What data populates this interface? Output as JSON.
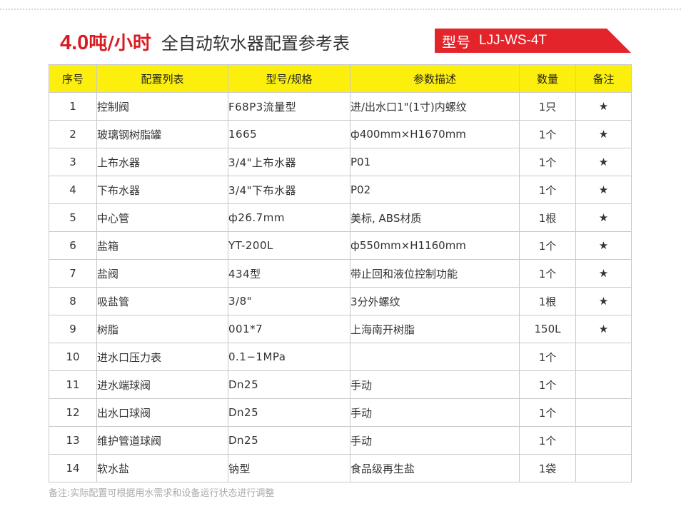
{
  "header": {
    "title_number": "4.0",
    "title_unit": "吨/小时",
    "title_rest": "全自动软水器配置参考表",
    "model_label": "型号",
    "model_value": "LJJ-WS-4T"
  },
  "table": {
    "columns": [
      "序号",
      "配置列表",
      "型号/规格",
      "参数描述",
      "数量",
      "备注"
    ],
    "rows": [
      {
        "seq": "1",
        "name": "控制阀",
        "model": "F68P3流量型",
        "desc": "进/出水口1\"(1寸)内螺纹",
        "qty": "1只",
        "note": "★"
      },
      {
        "seq": "2",
        "name": "玻璃钢树脂罐",
        "model": "1665",
        "desc": "ф400mm×H1670mm",
        "qty": "1个",
        "note": "★"
      },
      {
        "seq": "3",
        "name": "上布水器",
        "model": "3/4\"上布水器",
        "desc": "P01",
        "qty": "1个",
        "note": "★"
      },
      {
        "seq": "4",
        "name": "下布水器",
        "model": "3/4\"下布水器",
        "desc": "P02",
        "qty": "1个",
        "note": "★"
      },
      {
        "seq": "5",
        "name": "中心管",
        "model": "ф26.7mm",
        "desc": "美标, ABS材质",
        "qty": "1根",
        "note": "★"
      },
      {
        "seq": "6",
        "name": "盐箱",
        "model": "YT-200L",
        "desc": "ф550mm×H1160mm",
        "qty": "1个",
        "note": "★"
      },
      {
        "seq": "7",
        "name": "盐阀",
        "model": "434型",
        "desc": "带止回和液位控制功能",
        "qty": "1个",
        "note": "★"
      },
      {
        "seq": "8",
        "name": "吸盐管",
        "model": "3/8\"",
        "desc": "3分外螺纹",
        "qty": "1根",
        "note": "★"
      },
      {
        "seq": "9",
        "name": "树脂",
        "model": "001*7",
        "desc": "上海南开树脂",
        "qty": "150L",
        "note": "★"
      },
      {
        "seq": "10",
        "name": "进水口压力表",
        "model": "0.1−1MPa",
        "desc": "",
        "qty": "1个",
        "note": ""
      },
      {
        "seq": "11",
        "name": "进水端球阀",
        "model": "Dn25",
        "desc": "手动",
        "qty": "1个",
        "note": ""
      },
      {
        "seq": "12",
        "name": "出水口球阀",
        "model": "Dn25",
        "desc": "手动",
        "qty": "1个",
        "note": ""
      },
      {
        "seq": "13",
        "name": "维护管道球阀",
        "model": "Dn25",
        "desc": "手动",
        "qty": "1个",
        "note": ""
      },
      {
        "seq": "14",
        "name": "软水盐",
        "model": "钠型",
        "desc": "食品级再生盐",
        "qty": "1袋",
        "note": ""
      }
    ]
  },
  "footnote": "备注:实际配置可根据用水需求和设备运行状态进行调整"
}
